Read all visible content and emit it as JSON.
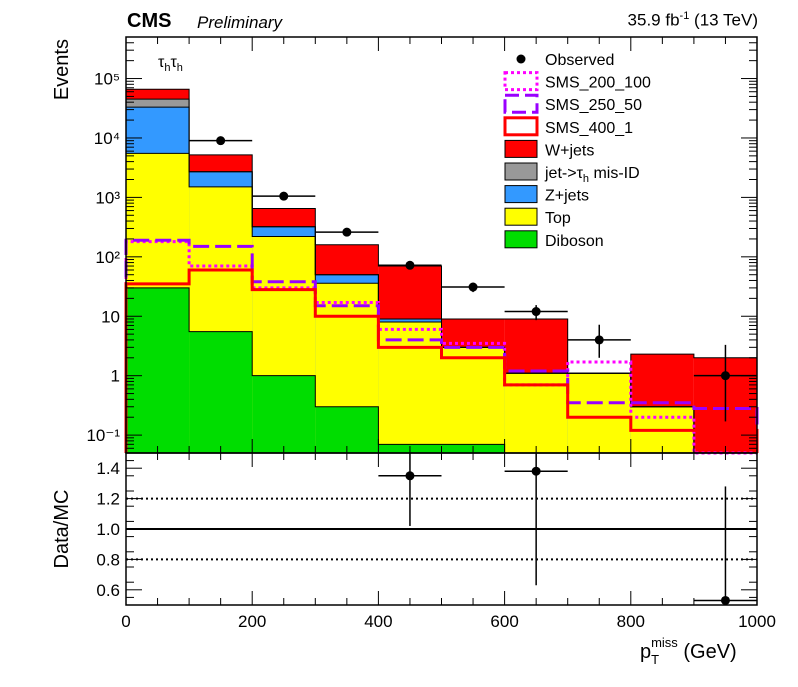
{
  "header": {
    "experiment": "CMS",
    "status": "Preliminary",
    "lumi_value": "35.9 fb",
    "lumi_sup": "-1",
    "lumi_energy": " (13 TeV)"
  },
  "chart_data": [
    {
      "type": "bar",
      "subtype": "stacked-histogram",
      "channel_label": "τhτh",
      "ylabel": "Events",
      "yscale": "log",
      "ylim": [
        0.05,
        500000
      ],
      "xlim": [
        0,
        1000
      ],
      "bin_edges": [
        0,
        100,
        200,
        300,
        400,
        500,
        600,
        700,
        800,
        900,
        1000
      ],
      "y_tick_labels": [
        "10⁻¹",
        "1",
        "10",
        "10²",
        "10³",
        "10⁴",
        "10⁵"
      ],
      "legend_position": "top-right",
      "stack_order_bottom_to_top": [
        "Diboson",
        "Top",
        "Z+jets",
        "jet->τh mis-ID",
        "W+jets"
      ],
      "stack_series": [
        {
          "name": "Diboson",
          "color": "#00dd00",
          "values": [
            30,
            5.5,
            1.0,
            0.3,
            0.07,
            0.07,
            0.0,
            0.0,
            0.0,
            0.0
          ]
        },
        {
          "name": "Top",
          "color": "#ffff00",
          "values": [
            5500,
            1500,
            220,
            36,
            8.0,
            3.0,
            1.1,
            1.1,
            0.3,
            0.0
          ]
        },
        {
          "name": "Z+jets",
          "color": "#3399ff",
          "values": [
            33000,
            2700,
            320,
            50,
            9.0,
            3.0,
            1.1,
            1.1,
            0.3,
            0.0
          ]
        },
        {
          "name": "jet->τh mis-ID",
          "color": "#999999",
          "values": [
            45000,
            2700,
            320,
            50,
            9.0,
            3.0,
            1.1,
            1.1,
            0.3,
            0.0
          ]
        },
        {
          "name": "W+jets",
          "color": "#ff0000",
          "values": [
            66000,
            5200,
            650,
            160,
            70,
            9.0,
            9.0,
            1.1,
            2.3,
            2.0
          ]
        }
      ],
      "line_series": [
        {
          "name": "SMS_200_100",
          "color": "#ff00ff",
          "dash": "dotted",
          "values": [
            180,
            70,
            30,
            17,
            6.0,
            3.5,
            0.7,
            1.7,
            0.2,
            0.05
          ]
        },
        {
          "name": "SMS_250_50",
          "color": "#9900ff",
          "dash": "dashed",
          "values": [
            190,
            150,
            38,
            15,
            4.0,
            3.0,
            1.2,
            0.35,
            0.35,
            0.28
          ]
        },
        {
          "name": "SMS_400_1",
          "color": "#ff0000",
          "dash": "solid",
          "values": [
            35,
            60,
            28,
            10,
            3.0,
            2.0,
            0.7,
            0.2,
            0.12,
            0.12
          ]
        }
      ],
      "observed": {
        "name": "Observed",
        "x": [
          150,
          250,
          350,
          450,
          550,
          650,
          750,
          950
        ],
        "y": [
          9000,
          1050,
          260,
          72,
          31,
          12,
          4,
          1
        ],
        "yerr_low": [
          95,
          32,
          16,
          8.5,
          5.5,
          3.4,
          2.0,
          0.83
        ],
        "yerr_high": [
          95,
          32,
          16,
          8.5,
          5.5,
          3.4,
          3.2,
          2.3
        ],
        "xerr": 50
      },
      "legend": [
        "Observed",
        "SMS_200_100",
        "SMS_250_50",
        "SMS_400_1",
        "W+jets",
        "jet->τh mis-ID",
        "Z+jets",
        "Top",
        "Diboson"
      ]
    },
    {
      "type": "scatter",
      "ylabel": "Data/MC",
      "xlabel": "p_T^miss (GeV)",
      "xlabel_main": "p",
      "xlabel_sub": "T",
      "xlabel_sup": "miss",
      "xlabel_unit": " (GeV)",
      "xlim": [
        0,
        1000
      ],
      "ylim": [
        0.5,
        1.5
      ],
      "x_ticks": [
        0,
        200,
        400,
        600,
        800,
        1000
      ],
      "y_ticks": [
        "0.6",
        "0.8",
        "1.0",
        "1.2",
        "1.4"
      ],
      "reference_lines": [
        {
          "y": 1.0,
          "style": "solid"
        },
        {
          "y": 0.8,
          "style": "dotted"
        },
        {
          "y": 1.2,
          "style": "dotted"
        }
      ],
      "points": {
        "x": [
          450,
          650,
          950
        ],
        "y": [
          1.35,
          1.38,
          0.53
        ],
        "yerr_low": [
          0.33,
          0.75,
          0.53
        ],
        "yerr_high": [
          0.33,
          0.75,
          0.75
        ],
        "xerr": 50
      }
    }
  ]
}
